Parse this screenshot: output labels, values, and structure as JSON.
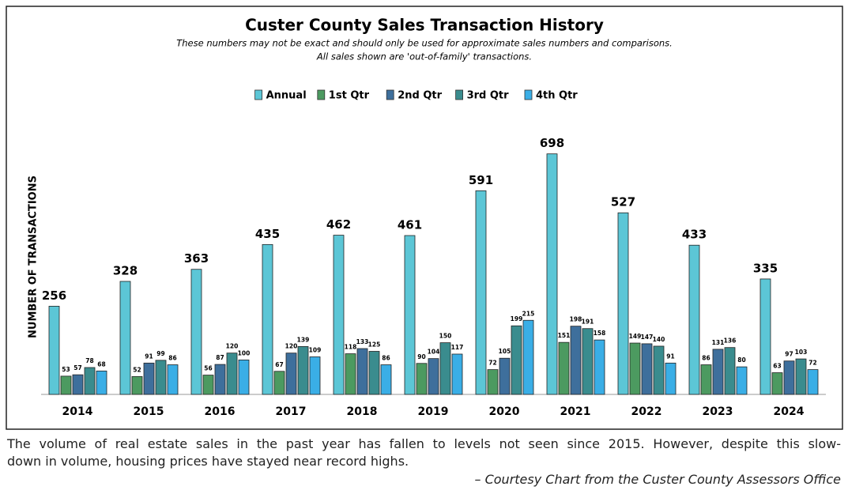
{
  "chart_data": {
    "type": "bar",
    "title": "Custer County Sales Transaction History",
    "subtitle": [
      "These numbers may not be exact and should only be used for approximate sales numbers and comparisons.",
      "All sales shown are 'out-of-family' transactions."
    ],
    "ylabel": "NUMBER OF TRANSACTIONS",
    "categories": [
      "2014",
      "2015",
      "2016",
      "2017",
      "2018",
      "2019",
      "2020",
      "2021",
      "2022",
      "2023",
      "2024"
    ],
    "series": [
      {
        "name": "Annual",
        "color": "#5cc6d6",
        "values": [
          256,
          328,
          363,
          435,
          462,
          461,
          591,
          698,
          527,
          433,
          335
        ]
      },
      {
        "name": "1st Qtr",
        "color": "#4c9a60",
        "values": [
          53,
          52,
          56,
          67,
          118,
          90,
          72,
          151,
          149,
          86,
          63
        ]
      },
      {
        "name": "2nd Qtr",
        "color": "#3e6f9c",
        "values": [
          57,
          91,
          87,
          120,
          133,
          104,
          105,
          198,
          147,
          131,
          97
        ]
      },
      {
        "name": "3rd Qtr",
        "color": "#3a8c8e",
        "values": [
          78,
          99,
          120,
          139,
          125,
          150,
          199,
          191,
          140,
          136,
          103
        ]
      },
      {
        "name": "4th Qtr",
        "color": "#3aaee6",
        "values": [
          68,
          86,
          100,
          109,
          86,
          117,
          215,
          158,
          91,
          80,
          72
        ]
      }
    ],
    "ylim": [
      0,
      750
    ],
    "legend": "top"
  },
  "caption": {
    "lines": [
      "The volume of real estate sales in the past year has fallen to levels not seen since 2015. However, despite this slow-",
      "down in volume, housing prices have stayed near record highs."
    ],
    "credit": "– Courtesy Chart from the Custer County Assessors Office"
  }
}
